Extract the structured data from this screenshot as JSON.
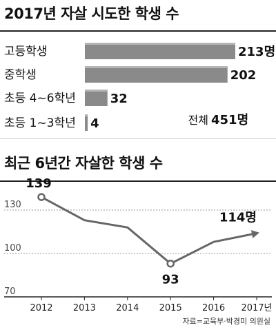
{
  "bar_title": "2017년 자살 시도한 학생 수",
  "line_title": "최근 6년간 자살한 학생 수",
  "total": {
    "label": "전체",
    "value": "451명"
  },
  "source": "자료=교육부·박경미 의원실",
  "chart_data": [
    {
      "type": "bar",
      "orientation": "horizontal",
      "title": "2017년 자살 시도한 학생 수",
      "categories": [
        "고등학생",
        "중학생",
        "초등 4~6학년",
        "초등 1~3학년"
      ],
      "values": [
        213,
        202,
        32,
        4
      ],
      "value_labels": [
        "213명",
        "202",
        "32",
        "4"
      ],
      "colors": {
        "bar": "#8a8a8a",
        "bar_highlight": "#b5b5b5"
      }
    },
    {
      "type": "line",
      "title": "최근 6년간 자살한 학생 수",
      "x": [
        2012,
        2013,
        2014,
        2015,
        2016,
        2017
      ],
      "x_tick_labels": [
        "2012",
        "2013",
        "2014",
        "2015",
        "2016",
        "2017년"
      ],
      "values": [
        139,
        123,
        118,
        93,
        108,
        114
      ],
      "labeled_points": [
        {
          "index": 0,
          "label": "139"
        },
        {
          "index": 3,
          "label": "93"
        },
        {
          "index": 5,
          "label": "114명"
        }
      ],
      "y_ticks": [
        70,
        100,
        130
      ],
      "ylim": [
        70,
        150
      ],
      "grid": "dotted-horizontal",
      "colors": {
        "line": "#666666",
        "axis": "#222222",
        "grid": "#9a9a9a"
      }
    }
  ]
}
